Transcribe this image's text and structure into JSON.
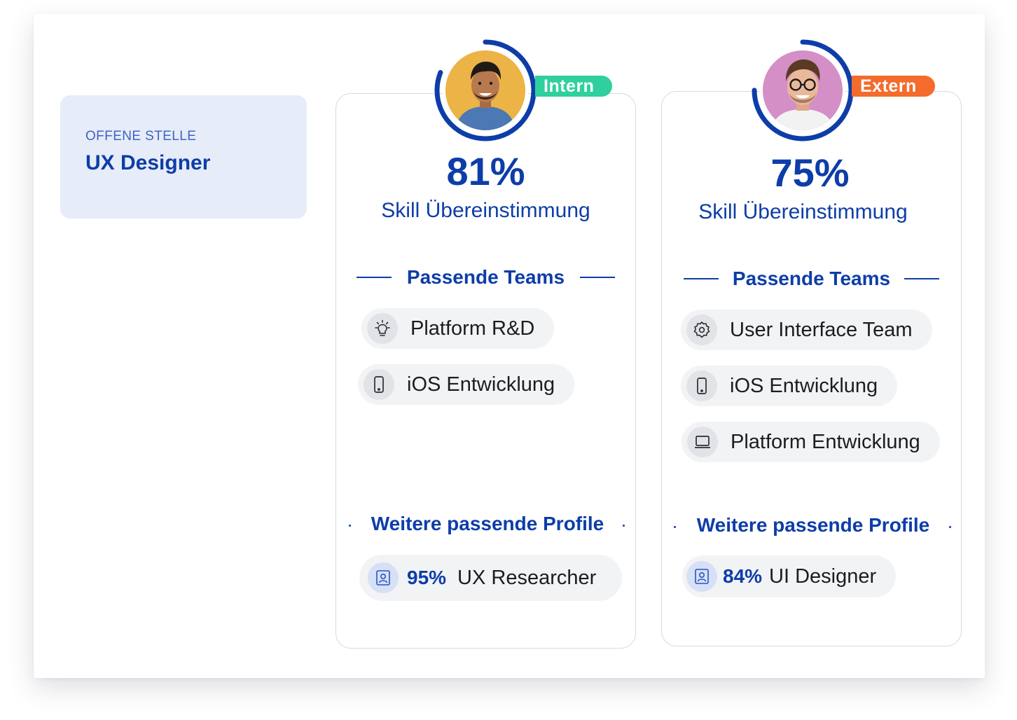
{
  "job": {
    "label": "OFFENE STELLE",
    "title": "UX Designer"
  },
  "colors": {
    "primary": "#0d3da8",
    "intern": "#2fcf9e",
    "extern": "#f46b2b",
    "chip_bg": "#f2f3f5",
    "job_bg": "#e6ecf8"
  },
  "candidates": [
    {
      "badge": "Intern",
      "match_percent": "81%",
      "match_fraction": 0.81,
      "match_label": "Skill Übereinstimmung",
      "teams_heading": "Passende Teams",
      "teams": [
        {
          "icon": "lightbulb-icon",
          "label": "Platform R&D"
        },
        {
          "icon": "smartphone-icon",
          "label": "iOS Entwicklung"
        }
      ],
      "profiles_heading": "Weitere passende Profile",
      "profiles": [
        {
          "icon": "profile-badge-icon",
          "percent": "95%",
          "label": "UX Researcher"
        }
      ]
    },
    {
      "badge": "Extern",
      "match_percent": "75%",
      "match_fraction": 0.75,
      "match_label": "Skill Übereinstimmung",
      "teams_heading": "Passende Teams",
      "teams": [
        {
          "icon": "gear-icon",
          "label": "User Interface Team"
        },
        {
          "icon": "smartphone-icon",
          "label": "iOS Entwicklung"
        },
        {
          "icon": "laptop-icon",
          "label": "Platform Entwicklung"
        }
      ],
      "profiles_heading": "Weitere passende Profile",
      "profiles": [
        {
          "icon": "profile-badge-icon",
          "percent": "84%",
          "label": "UI Designer"
        }
      ]
    }
  ]
}
